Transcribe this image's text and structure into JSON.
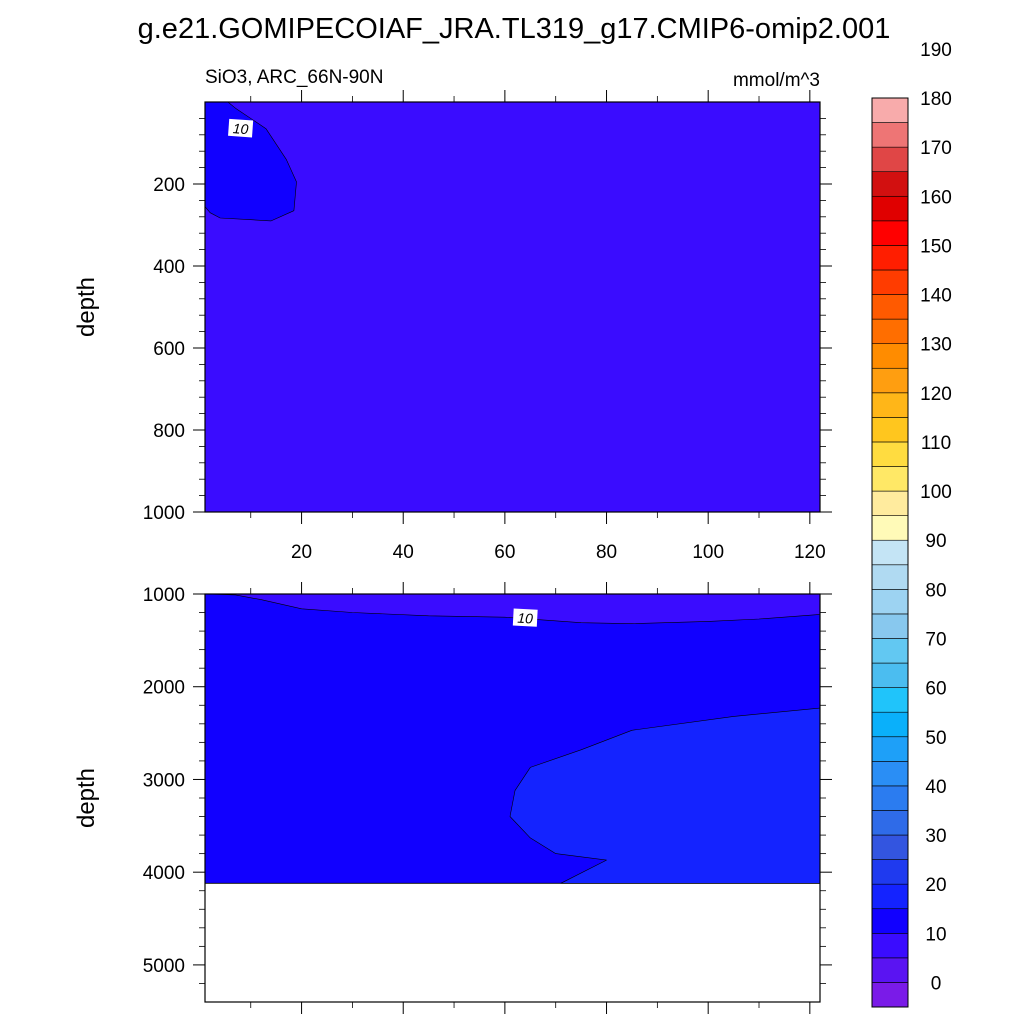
{
  "title": "g.e21.GOMIPECOIAF_JRA.TL319_g17.CMIP6-omip2.001",
  "chart_data": {
    "type": "contour",
    "variable_label": "SiO3, ARC_66N-90N",
    "units": "mmol/m^3",
    "x_ticks": [
      20,
      40,
      60,
      80,
      100,
      120
    ],
    "xlim": [
      1,
      122
    ],
    "fill_colors": {
      "upper_background": "#3a0cff",
      "lower_background": "#1100ff",
      "lower_right_region": "#1423ff",
      "below_bottom": "#ffffff"
    },
    "panels": [
      {
        "ylabel": "depth",
        "ylim": [
          0,
          1000
        ],
        "y_ticks": [
          200,
          400,
          600,
          800,
          1000
        ],
        "show_x_tick_labels": true,
        "contour_labels": [
          {
            "text": "10",
            "x": 8,
            "y": 65
          }
        ],
        "regions": [
          {
            "name": "upper-low-silicate-patch",
            "color": "#1100ff",
            "points": [
              [
                1,
                0
              ],
              [
                5.5,
                0
              ],
              [
                7,
                15
              ],
              [
                13,
                65
              ],
              [
                17,
                140
              ],
              [
                19,
                195
              ],
              [
                18.5,
                265
              ],
              [
                14,
                290
              ],
              [
                10,
                287
              ],
              [
                4,
                283
              ],
              [
                2,
                270
              ],
              [
                1,
                255
              ]
            ]
          }
        ]
      },
      {
        "ylabel": "depth",
        "ylim": [
          1000,
          5400
        ],
        "y_ticks": [
          1000,
          2000,
          3000,
          4000,
          5000
        ],
        "show_x_tick_labels": false,
        "bottom_depth": 4120,
        "contour_labels": [
          {
            "text": "10",
            "x": 64,
            "y": 1260
          }
        ],
        "regions": [
          {
            "name": "lower-upper-band",
            "color": "#3a0cff",
            "points": [
              [
                1,
                1000
              ],
              [
                122,
                1000
              ],
              [
                122,
                1220
              ],
              [
                110,
                1270
              ],
              [
                100,
                1295
              ],
              [
                85,
                1320
              ],
              [
                75,
                1310
              ],
              [
                60,
                1250
              ],
              [
                45,
                1235
              ],
              [
                30,
                1200
              ],
              [
                20,
                1160
              ],
              [
                12,
                1060
              ],
              [
                7,
                1010
              ],
              [
                1,
                1000
              ]
            ]
          },
          {
            "name": "lower-right-region",
            "color": "#1423ff",
            "points": [
              [
                122,
                2230
              ],
              [
                105,
                2320
              ],
              [
                85,
                2470
              ],
              [
                75,
                2680
              ],
              [
                65,
                2870
              ],
              [
                62,
                3120
              ],
              [
                61,
                3400
              ],
              [
                65,
                3630
              ],
              [
                70,
                3800
              ],
              [
                80,
                3870
              ],
              [
                71,
                4120
              ],
              [
                122,
                4120
              ]
            ]
          }
        ]
      }
    ],
    "colorbar": {
      "colors": [
        "#7a1be8",
        "#5a14f2",
        "#3a0cff",
        "#1100ff",
        "#1423ff",
        "#1f3aef",
        "#3355e0",
        "#2f6be8",
        "#2b7cf0",
        "#2a8ef5",
        "#1ea0f8",
        "#0ab0fa",
        "#20c4fa",
        "#4bbdf0",
        "#62c8f2",
        "#88c8ee",
        "#9dd3f2",
        "#b0daf2",
        "#c4e4f5",
        "#fffab8",
        "#ffeb9e",
        "#ffe866",
        "#ffdc40",
        "#ffc61e",
        "#ffb618",
        "#ff9e10",
        "#ff8c00",
        "#ff6e00",
        "#ff5a00",
        "#ff3c00",
        "#ff1e00",
        "#ff0000",
        "#e00000",
        "#d21010",
        "#e04646",
        "#ee7575",
        "#f8abab"
      ],
      "tick_labels": [
        "0",
        "10",
        "20",
        "30",
        "40",
        "50",
        "60",
        "70",
        "80",
        "90",
        "100",
        "110",
        "120",
        "130",
        "140",
        "150",
        "160",
        "170",
        "180",
        "190"
      ]
    }
  }
}
